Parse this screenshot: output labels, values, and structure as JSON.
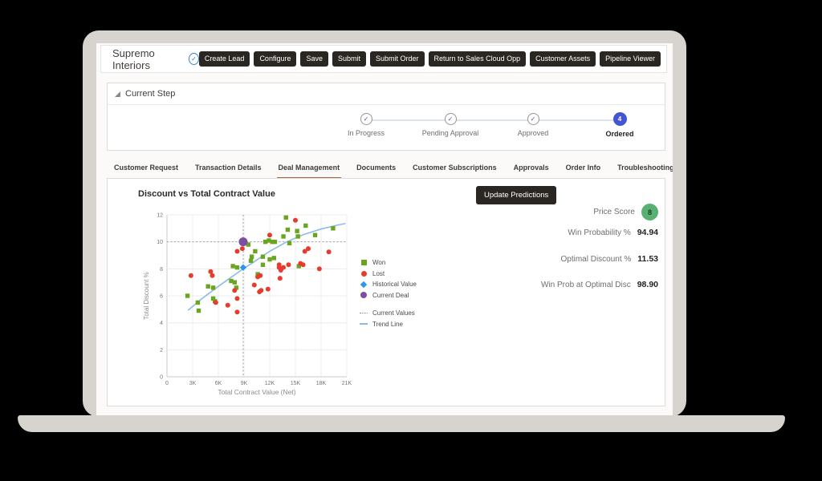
{
  "window": {
    "title": "Supremo Interiors"
  },
  "header": {
    "buttons": [
      "Create Lead",
      "Configure",
      "Save",
      "Submit",
      "Submit Order",
      "Return to Sales Cloud Opp",
      "Customer Assets",
      "Pipeline Viewer"
    ]
  },
  "current_step": {
    "title": "Current Step",
    "steps": [
      {
        "label": "In Progress",
        "state": "complete"
      },
      {
        "label": "Pending Approval",
        "state": "complete"
      },
      {
        "label": "Approved",
        "state": "complete"
      },
      {
        "label": "Ordered",
        "state": "current",
        "number": "4"
      }
    ]
  },
  "tabs": {
    "items": [
      {
        "label": "Customer Request"
      },
      {
        "label": "Transaction Details"
      },
      {
        "label": "Deal Management",
        "active": true
      },
      {
        "label": "Documents"
      },
      {
        "label": "Customer Subscriptions"
      },
      {
        "label": "Approvals"
      },
      {
        "label": "Order Info"
      },
      {
        "label": "Troubleshooting"
      }
    ]
  },
  "deal_panel": {
    "update_button": "Update Predictions",
    "metrics": {
      "rows": [
        {
          "label": "Price Score",
          "value": "8",
          "badge": true,
          "badge_color": "#58b173"
        },
        {
          "label": "Win Probability %",
          "value": "94.94"
        },
        {
          "label": "Optimal Discount %",
          "value": "11.53"
        },
        {
          "label": "Win Prob at Optimal Disc",
          "value": "98.90"
        }
      ]
    }
  },
  "chart_data": {
    "type": "scatter",
    "title": "Discount vs Total Contract Value",
    "xlabel": "Total Contract Value (Net)",
    "ylabel": "Total Discount %",
    "x_unit": "thousands",
    "xlim_k": [
      0,
      21
    ],
    "ylim": [
      0,
      12
    ],
    "x_ticks": [
      "0",
      "3K",
      "6K",
      "9K",
      "12K",
      "15K",
      "18K",
      "21K"
    ],
    "y_ticks": [
      "0",
      "2",
      "4",
      "6",
      "8",
      "10",
      "12"
    ],
    "grid": true,
    "legend_position": "right",
    "legend": [
      "Won",
      "Lost",
      "Historical Value",
      "Current Deal",
      "Current Values",
      "Trend Line"
    ],
    "series": [
      {
        "name": "Won",
        "marker": "square",
        "color": "#6aa520",
        "points": [
          [
            2.4,
            6.0
          ],
          [
            3.6,
            5.5
          ],
          [
            3.7,
            4.9
          ],
          [
            4.8,
            6.7
          ],
          [
            5.4,
            6.6
          ],
          [
            5.4,
            5.8
          ],
          [
            5.6,
            5.6
          ],
          [
            7.5,
            7.1
          ],
          [
            7.7,
            8.2
          ],
          [
            7.9,
            7.0
          ],
          [
            8.1,
            6.6
          ],
          [
            8.2,
            8.1
          ],
          [
            9.5,
            9.8
          ],
          [
            9.8,
            8.6
          ],
          [
            9.9,
            8.9
          ],
          [
            10.3,
            9.3
          ],
          [
            10.6,
            7.6
          ],
          [
            11.2,
            8.3
          ],
          [
            11.2,
            8.9
          ],
          [
            11.5,
            10.0
          ],
          [
            11.9,
            10.1
          ],
          [
            12.0,
            8.7
          ],
          [
            12.3,
            10.0
          ],
          [
            12.6,
            10.0
          ],
          [
            12.5,
            8.8
          ],
          [
            13.6,
            10.4
          ],
          [
            13.9,
            11.8
          ],
          [
            14.1,
            10.9
          ],
          [
            14.3,
            9.9
          ],
          [
            15.2,
            10.8
          ],
          [
            15.3,
            10.4
          ],
          [
            15.4,
            8.2
          ],
          [
            16.2,
            11.2
          ],
          [
            17.3,
            10.5
          ],
          [
            19.4,
            11.0
          ]
        ]
      },
      {
        "name": "Lost",
        "marker": "circle",
        "color": "#e73b2e",
        "points": [
          [
            2.8,
            7.5
          ],
          [
            5.1,
            7.8
          ],
          [
            5.3,
            7.5
          ],
          [
            5.7,
            5.5
          ],
          [
            7.1,
            5.3
          ],
          [
            7.9,
            6.4
          ],
          [
            8.2,
            5.8
          ],
          [
            8.2,
            4.8
          ],
          [
            8.2,
            9.3
          ],
          [
            8.8,
            9.5
          ],
          [
            10.2,
            6.8
          ],
          [
            10.6,
            7.4
          ],
          [
            10.8,
            6.3
          ],
          [
            10.9,
            7.5
          ],
          [
            11.0,
            6.4
          ],
          [
            11.8,
            6.5
          ],
          [
            12.0,
            10.5
          ],
          [
            13.1,
            8.3
          ],
          [
            13.1,
            8.1
          ],
          [
            13.2,
            7.3
          ],
          [
            13.3,
            7.9
          ],
          [
            13.6,
            8.1
          ],
          [
            14.2,
            8.3
          ],
          [
            15.0,
            11.6
          ],
          [
            15.6,
            8.4
          ],
          [
            15.9,
            8.3
          ],
          [
            16.1,
            9.3
          ],
          [
            16.5,
            9.5
          ],
          [
            17.8,
            8.0
          ],
          [
            18.9,
            9.25
          ]
        ]
      },
      {
        "name": "Historical Value",
        "marker": "diamond",
        "color": "#2a96ec",
        "points": [
          [
            8.9,
            8.1
          ]
        ]
      },
      {
        "name": "Current Deal",
        "marker": "circle-large",
        "color": "#7c4fa0",
        "points": [
          [
            8.9,
            10.0
          ]
        ]
      }
    ],
    "reference_lines": {
      "name": "Current Values",
      "style": "dotted",
      "color": "#a0a0a0",
      "x_k": 8.9,
      "y": 10
    },
    "trend_line": {
      "name": "Trend Line",
      "color": "#88bce8",
      "points": [
        [
          2.5,
          4.95
        ],
        [
          4,
          5.75
        ],
        [
          6,
          6.7
        ],
        [
          8,
          7.6
        ],
        [
          9,
          8.05
        ],
        [
          10,
          8.45
        ],
        [
          12,
          9.3
        ],
        [
          14,
          10.0
        ],
        [
          16,
          10.55
        ],
        [
          18,
          10.95
        ],
        [
          20,
          11.25
        ],
        [
          20.8,
          11.35
        ]
      ]
    }
  }
}
